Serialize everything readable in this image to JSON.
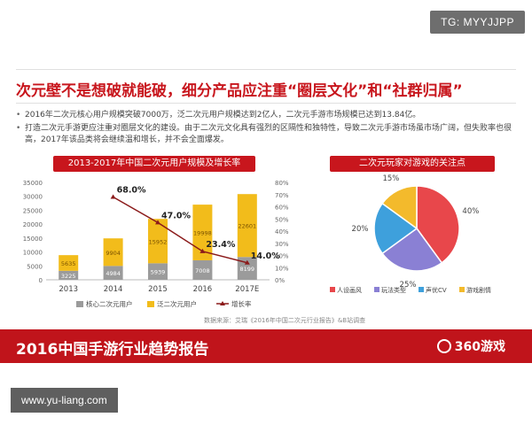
{
  "watermark_top": "TG: MYYJJPP",
  "slide_title": "次元壁不是想破就能破，细分产品应注重“圈层文化”和“社群归属”",
  "bullets": [
    "2016年二次元核心用户规模突破7000万，泛二次元用户规模达到2亿人，二次元手游市场规模已达到13.84亿。",
    "打造二次元手游更应注重对圈层文化的建设。由于二次元文化具有强烈的区隔性和独特性，导致二次元手游市场虽市场广阔，但失败率也很高，2017年该品类将会继续温和增长，并不会全面爆发。"
  ],
  "source_note": "数据来源：艾瑞《2016年中国二次元行业报告》&B站调查",
  "footer_title": "2016中国手游行业趋势报告",
  "footer_brand": "360游戏",
  "watermark_bottom": "www.yu-liang.com",
  "colors": {
    "red": "#c8161d",
    "gray": "#9b9b9b",
    "yellow": "#f2bc1b",
    "pie_red": "#e8474b",
    "pie_purple": "#8a80d4",
    "pie_blue": "#3ea0dc",
    "pie_yellow": "#f3ba2c"
  },
  "chart_data": [
    {
      "type": "bar",
      "title": "2013-2017年中国二次元用户规模及增长率",
      "categories": [
        "2013",
        "2014",
        "2015",
        "2016",
        "2017E"
      ],
      "series": [
        {
          "name": "核心二次元用户",
          "values": [
            3225,
            4984,
            5939,
            7008,
            8199
          ],
          "color": "#9b9b9b"
        },
        {
          "name": "泛二次元用户",
          "values": [
            5635,
            9904,
            15952,
            19998,
            22601
          ],
          "color": "#f2bc1b"
        },
        {
          "name": "增长率",
          "values": [
            null,
            68.0,
            47.0,
            23.4,
            14.0
          ],
          "color": "#8b1a1a",
          "kind": "line"
        }
      ],
      "y_ticks": [
        "0",
        "5000",
        "10000",
        "15000",
        "20000",
        "25000",
        "30000",
        "35000"
      ],
      "y2_ticks": [
        "0%",
        "10%",
        "20%",
        "30%",
        "40%",
        "50%",
        "60%",
        "70%",
        "80%"
      ],
      "ylim": [
        0,
        35000
      ],
      "y2lim": [
        0,
        80
      ],
      "rate_labels": [
        "68.0%",
        "47.0%",
        "23.4%",
        "14.0%"
      ],
      "legend": "bottom"
    },
    {
      "type": "pie",
      "title": "二次元玩家对游戏的关注点",
      "slices": [
        {
          "name": "人设画风",
          "value": 40,
          "label": "40%",
          "color": "#e8474b"
        },
        {
          "name": "玩法类型",
          "value": 25,
          "label": "25%",
          "color": "#8a80d4"
        },
        {
          "name": "声优CV",
          "value": 20,
          "label": "20%",
          "color": "#3ea0dc"
        },
        {
          "name": "游戏剧情",
          "value": 15,
          "label": "15%",
          "color": "#f3ba2c"
        }
      ],
      "legend": "bottom"
    }
  ]
}
